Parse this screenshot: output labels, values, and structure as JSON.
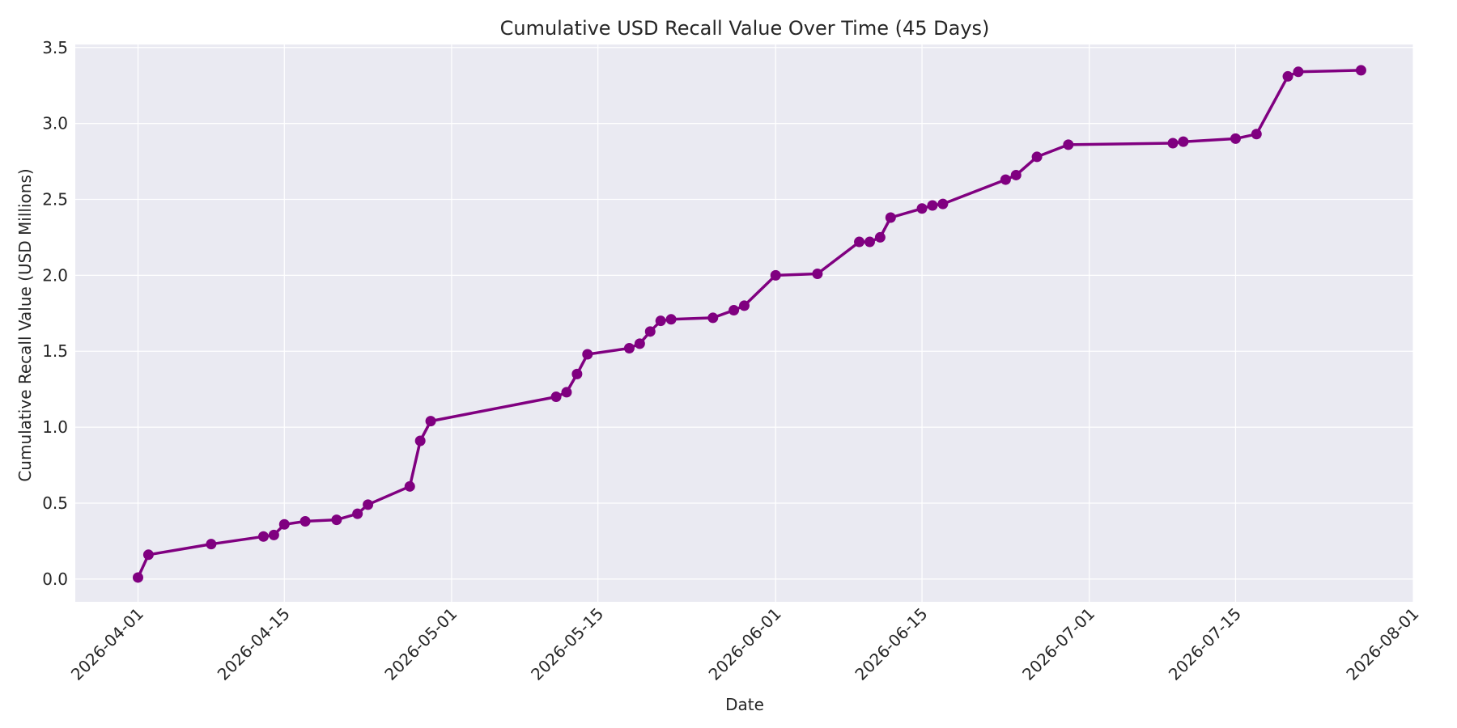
{
  "chart_data": {
    "type": "line",
    "title": "Cumulative USD Recall Value Over Time (45 Days)",
    "xlabel": "Date",
    "ylabel": "Cumulative Recall Value (USD Millions)",
    "x_ticks": [
      "2026-04-01",
      "2026-04-15",
      "2026-05-01",
      "2026-05-15",
      "2026-06-01",
      "2026-06-15",
      "2026-07-01",
      "2026-07-15",
      "2026-08-01"
    ],
    "y_ticks": [
      "0.0",
      "0.5",
      "1.0",
      "1.5",
      "2.0",
      "2.5",
      "3.0",
      "3.5"
    ],
    "xlim": [
      "2026-03-26",
      "2026-08-01"
    ],
    "ylim": [
      -0.15,
      3.52
    ],
    "grid": true,
    "colors": {
      "line": "#800080",
      "plot_background": "#eaeaf2",
      "grid": "#ffffff",
      "text": "#262626"
    },
    "series": [
      {
        "x": [
          "2026-04-01",
          "2026-04-02",
          "2026-04-08",
          "2026-04-13",
          "2026-04-14",
          "2026-04-15",
          "2026-04-17",
          "2026-04-20",
          "2026-04-22",
          "2026-04-23",
          "2026-04-27",
          "2026-04-28",
          "2026-04-29",
          "2026-05-11",
          "2026-05-12",
          "2026-05-13",
          "2026-05-14",
          "2026-05-18",
          "2026-05-19",
          "2026-05-20",
          "2026-05-21",
          "2026-05-22",
          "2026-05-26",
          "2026-05-28",
          "2026-05-29",
          "2026-06-01",
          "2026-06-05",
          "2026-06-09",
          "2026-06-10",
          "2026-06-11",
          "2026-06-12",
          "2026-06-15",
          "2026-06-16",
          "2026-06-17",
          "2026-06-23",
          "2026-06-24",
          "2026-06-26",
          "2026-06-29",
          "2026-07-09",
          "2026-07-10",
          "2026-07-15",
          "2026-07-17",
          "2026-07-20",
          "2026-07-21",
          "2026-07-27"
        ],
        "y": [
          0.01,
          0.16,
          0.23,
          0.28,
          0.29,
          0.36,
          0.38,
          0.39,
          0.43,
          0.49,
          0.61,
          0.91,
          1.04,
          1.2,
          1.23,
          1.35,
          1.48,
          1.52,
          1.55,
          1.63,
          1.7,
          1.71,
          1.72,
          1.77,
          1.8,
          2.0,
          2.01,
          2.22,
          2.22,
          2.25,
          2.38,
          2.44,
          2.46,
          2.47,
          2.63,
          2.66,
          2.78,
          2.86,
          2.87,
          2.88,
          2.9,
          2.93,
          3.31,
          3.34,
          3.35
        ]
      }
    ]
  }
}
